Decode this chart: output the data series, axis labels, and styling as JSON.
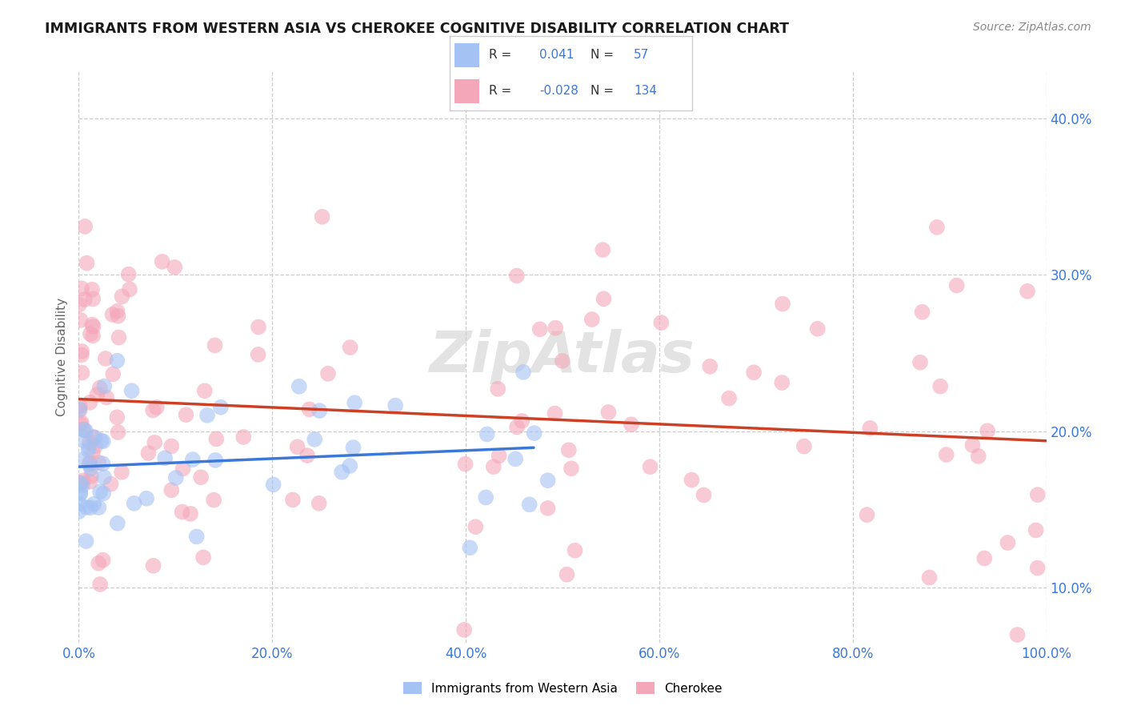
{
  "title": "IMMIGRANTS FROM WESTERN ASIA VS CHEROKEE COGNITIVE DISABILITY CORRELATION CHART",
  "source": "Source: ZipAtlas.com",
  "ylabel": "Cognitive Disability",
  "xlim": [
    0,
    1.0
  ],
  "ylim": [
    0.065,
    0.43
  ],
  "xticks": [
    0.0,
    0.2,
    0.4,
    0.6,
    0.8,
    1.0
  ],
  "yticks": [
    0.1,
    0.2,
    0.3,
    0.4
  ],
  "blue_color": "#a4c2f4",
  "pink_color": "#f4a7b9",
  "blue_line_color": "#3c78d8",
  "pink_line_color": "#cc4125",
  "watermark": "ZipAtlas",
  "legend_label1": "Immigrants from Western Asia",
  "legend_label2": "Cherokee"
}
